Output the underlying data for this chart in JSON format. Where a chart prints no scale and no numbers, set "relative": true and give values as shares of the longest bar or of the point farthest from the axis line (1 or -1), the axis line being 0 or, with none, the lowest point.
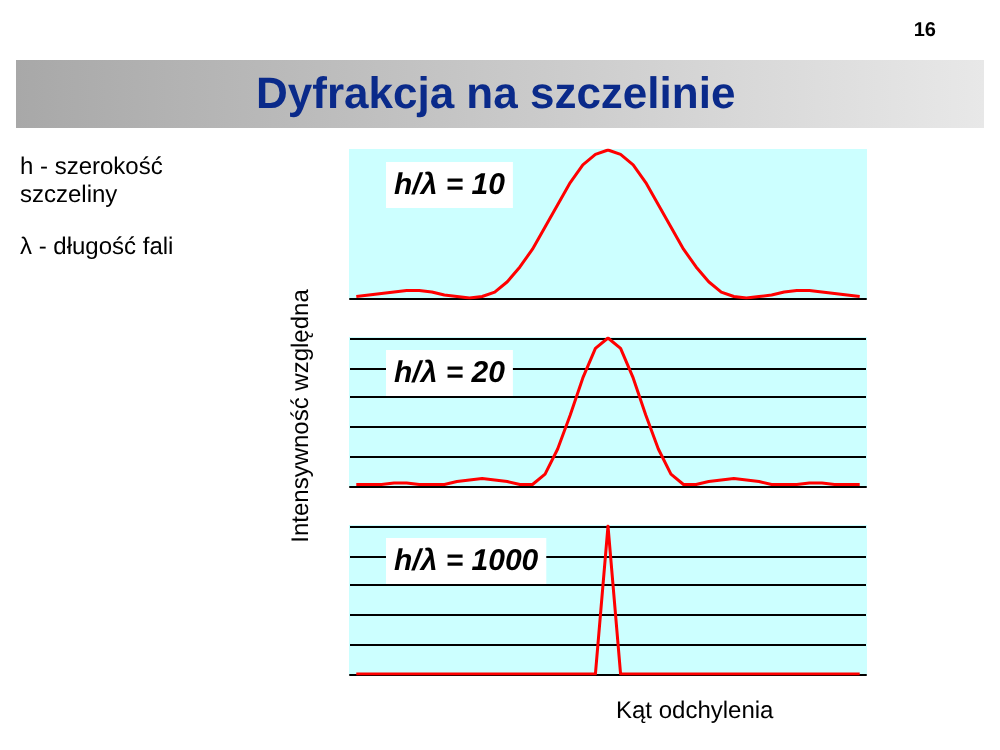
{
  "chart_data": [
    {
      "type": "line",
      "title": "Dyfrakcja na szczelinie",
      "subtitle": "h/λ = 10",
      "annotations": [
        "h - szerokość szczeliny",
        "λ - długość fali",
        "16"
      ],
      "relative": true,
      "grid": false,
      "color": "#ff0000",
      "categories": [
        null,
        null,
        null,
        null,
        null,
        null,
        null,
        null,
        null,
        null,
        null,
        null,
        null,
        null,
        null,
        null,
        null,
        null,
        null,
        null,
        null,
        null,
        null,
        null,
        null,
        null,
        null,
        null,
        null,
        null,
        null,
        null,
        null,
        null,
        null,
        null,
        null,
        null,
        null,
        null,
        null
      ],
      "values": [
        0.01,
        0.02,
        0.03,
        0.04,
        0.05,
        0.05,
        0.04,
        0.02,
        0.01,
        0,
        0.01,
        0.04,
        0.11,
        0.21,
        0.33,
        0.48,
        0.63,
        0.78,
        0.9,
        0.97,
        1,
        0.97,
        0.9,
        0.78,
        0.63,
        0.48,
        0.33,
        0.21,
        0.11,
        0.04,
        0.01,
        0,
        0.01,
        0.02,
        0.04,
        0.05,
        0.05,
        0.04,
        0.03,
        0.02,
        0.01
      ]
    },
    {
      "type": "line",
      "subtitle": "h/λ = 20",
      "ylabel": "Intensywność względna",
      "relative": true,
      "grid": "y",
      "color": "#ff0000",
      "categories": [
        null,
        null,
        null,
        null,
        null,
        null,
        null,
        null,
        null,
        null,
        null,
        null,
        null,
        null,
        null,
        null,
        null,
        null,
        null,
        null,
        null,
        null,
        null,
        null,
        null,
        null,
        null,
        null,
        null,
        null,
        null,
        null,
        null,
        null,
        null,
        null,
        null,
        null,
        null,
        null,
        null
      ],
      "values": [
        0.01,
        0.01,
        0.01,
        0.02,
        0.02,
        0.01,
        0.01,
        0.01,
        0.03,
        0.04,
        0.05,
        0.04,
        0.03,
        0.01,
        0.01,
        0.08,
        0.25,
        0.48,
        0.73,
        0.93,
        1,
        0.93,
        0.73,
        0.48,
        0.25,
        0.08,
        0.01,
        0.01,
        0.03,
        0.04,
        0.05,
        0.04,
        0.03,
        0.01,
        0.01,
        0.01,
        0.02,
        0.02,
        0.01,
        0.01,
        0.01
      ]
    },
    {
      "type": "line",
      "subtitle": "h/λ = 1000",
      "xlabel": "Kąt odchylenia",
      "relative": true,
      "grid": "y",
      "color": "#ff0000",
      "categories": [
        null,
        null,
        null,
        null,
        null,
        null,
        null,
        null,
        null,
        null,
        null,
        null,
        null,
        null,
        null,
        null,
        null,
        null,
        null,
        null,
        null,
        null,
        null,
        null,
        null,
        null,
        null,
        null,
        null,
        null,
        null,
        null,
        null,
        null,
        null,
        null,
        null,
        null,
        null,
        null,
        null
      ],
      "values": [
        0,
        0,
        0,
        0,
        0,
        0,
        0,
        0,
        0,
        0,
        0,
        0,
        0,
        0,
        0,
        0,
        0,
        0,
        0,
        0,
        1,
        0,
        0,
        0,
        0,
        0,
        0,
        0,
        0,
        0,
        0,
        0,
        0,
        0,
        0,
        0,
        0,
        0,
        0,
        0,
        0
      ]
    }
  ]
}
